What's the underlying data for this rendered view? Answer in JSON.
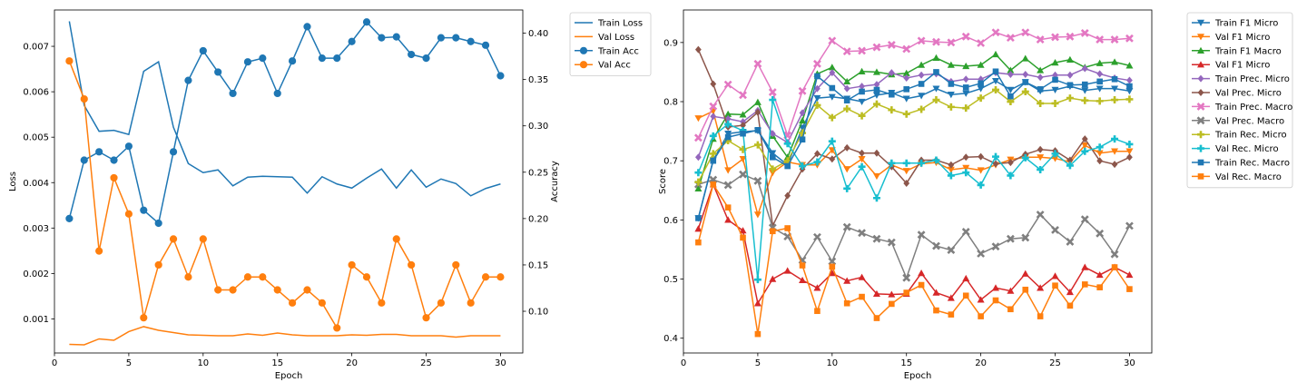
{
  "chart_data": [
    {
      "type": "line",
      "title": "",
      "xlabel": "Epoch",
      "ylabel": "Loss",
      "y2label": "Accuracy",
      "xlim": [
        0,
        31.5
      ],
      "ylim": [
        0.00025,
        0.0078
      ],
      "y2lim": [
        0.055,
        0.425
      ],
      "xticks": [
        0,
        5,
        10,
        15,
        20,
        25,
        30
      ],
      "yticks": [
        0.001,
        0.002,
        0.003,
        0.004,
        0.005,
        0.006,
        0.007
      ],
      "y2ticks": [
        0.1,
        0.15,
        0.2,
        0.25,
        0.3,
        0.35,
        0.4
      ],
      "grid": false,
      "legend_position": "outside top-right",
      "x": [
        1,
        2,
        3,
        4,
        5,
        6,
        7,
        8,
        9,
        10,
        11,
        12,
        13,
        14,
        15,
        16,
        17,
        18,
        19,
        20,
        21,
        22,
        23,
        24,
        25,
        26,
        27,
        28,
        29,
        30
      ],
      "series": [
        {
          "name": "Train Loss",
          "axis": "left",
          "color": "#1f77b4",
          "marker": "none",
          "values": [
            0.00755,
            0.0057,
            0.00513,
            0.00515,
            0.00506,
            0.00645,
            0.00666,
            0.00522,
            0.00442,
            0.00422,
            0.00428,
            0.00393,
            0.00412,
            0.00414,
            0.00413,
            0.00412,
            0.00377,
            0.00413,
            0.00397,
            0.00388,
            0.0041,
            0.0043,
            0.00388,
            0.00428,
            0.0039,
            0.00408,
            0.00398,
            0.00371,
            0.00387,
            0.00397
          ]
        },
        {
          "name": "Val Loss",
          "axis": "left",
          "color": "#ff7f0e",
          "marker": "none",
          "values": [
            0.00044,
            0.00043,
            0.00056,
            0.00053,
            0.00072,
            0.00083,
            0.00075,
            0.0007,
            0.00065,
            0.00064,
            0.00063,
            0.00063,
            0.00067,
            0.00064,
            0.00069,
            0.00065,
            0.00063,
            0.00063,
            0.00063,
            0.00065,
            0.00064,
            0.00066,
            0.00066,
            0.00063,
            0.00063,
            0.00063,
            0.0006,
            0.00063,
            0.00063,
            0.00063
          ]
        },
        {
          "name": "Train Acc",
          "axis": "right",
          "color": "#1f77b4",
          "marker": "circle",
          "values": [
            0.2,
            0.263,
            0.272,
            0.263,
            0.278,
            0.209,
            0.195,
            0.272,
            0.349,
            0.381,
            0.358,
            0.335,
            0.369,
            0.373,
            0.335,
            0.37,
            0.407,
            0.373,
            0.373,
            0.391,
            0.412,
            0.395,
            0.396,
            0.377,
            0.373,
            0.395,
            0.395,
            0.391,
            0.387,
            0.354
          ]
        },
        {
          "name": "Val Acc",
          "axis": "right",
          "color": "#ff7f0e",
          "marker": "circle",
          "values": [
            0.37,
            0.329,
            0.165,
            0.244,
            0.205,
            0.093,
            0.15,
            0.178,
            0.137,
            0.178,
            0.123,
            0.123,
            0.137,
            0.137,
            0.123,
            0.109,
            0.123,
            0.109,
            0.082,
            0.15,
            0.137,
            0.109,
            0.178,
            0.15,
            0.093,
            0.109,
            0.15,
            0.109,
            0.137,
            0.137
          ]
        }
      ]
    },
    {
      "type": "line",
      "title": "",
      "xlabel": "Epoch",
      "ylabel": "Score",
      "xlim": [
        0,
        31.5
      ],
      "ylim": [
        0.375,
        0.955
      ],
      "xticks": [
        0,
        5,
        10,
        15,
        20,
        25,
        30
      ],
      "yticks": [
        0.4,
        0.5,
        0.6,
        0.7,
        0.8,
        0.9
      ],
      "grid": false,
      "legend_position": "outside top-right",
      "x": [
        1,
        2,
        3,
        4,
        5,
        6,
        7,
        8,
        9,
        10,
        11,
        12,
        13,
        14,
        15,
        16,
        17,
        18,
        19,
        20,
        21,
        22,
        23,
        24,
        25,
        26,
        27,
        28,
        29,
        30
      ],
      "series": [
        {
          "name": "Train F1 Micro",
          "color": "#1f77b4",
          "marker": "triangle-down",
          "values": [
            0.603,
            0.701,
            0.746,
            0.749,
            0.751,
            0.713,
            0.693,
            0.756,
            0.806,
            0.808,
            0.805,
            0.8,
            0.811,
            0.815,
            0.805,
            0.81,
            0.822,
            0.812,
            0.814,
            0.822,
            0.835,
            0.82,
            0.833,
            0.818,
            0.82,
            0.826,
            0.819,
            0.822,
            0.822,
            0.818
          ]
        },
        {
          "name": "Val F1 Micro",
          "color": "#ff7f0e",
          "marker": "triangle-down",
          "values": [
            0.772,
            0.784,
            0.684,
            0.703,
            0.609,
            0.68,
            0.698,
            0.693,
            0.693,
            0.718,
            0.686,
            0.703,
            0.674,
            0.693,
            0.683,
            0.695,
            0.697,
            0.685,
            0.688,
            0.684,
            0.693,
            0.702,
            0.706,
            0.706,
            0.704,
            0.698,
            0.726,
            0.713,
            0.716,
            0.716
          ]
        },
        {
          "name": "Train F1 Macro",
          "color": "#2ca02c",
          "marker": "triangle-up",
          "values": [
            0.653,
            0.737,
            0.779,
            0.778,
            0.799,
            0.742,
            0.706,
            0.768,
            0.847,
            0.858,
            0.834,
            0.851,
            0.85,
            0.846,
            0.848,
            0.862,
            0.874,
            0.862,
            0.86,
            0.862,
            0.88,
            0.853,
            0.873,
            0.853,
            0.866,
            0.871,
            0.858,
            0.865,
            0.867,
            0.861
          ]
        },
        {
          "name": "Val F1 Micro",
          "color": "#d62728",
          "marker": "triangle-up",
          "values": [
            0.585,
            0.66,
            0.6,
            0.582,
            0.459,
            0.5,
            0.514,
            0.498,
            0.485,
            0.51,
            0.497,
            0.503,
            0.475,
            0.474,
            0.475,
            0.51,
            0.477,
            0.468,
            0.501,
            0.465,
            0.485,
            0.48,
            0.509,
            0.485,
            0.505,
            0.478,
            0.52,
            0.507,
            0.52,
            0.507
          ]
        },
        {
          "name": "Train Prec. Micro",
          "color": "#9467bd",
          "marker": "diamond",
          "values": [
            0.706,
            0.775,
            0.771,
            0.766,
            0.785,
            0.746,
            0.731,
            0.781,
            0.822,
            0.849,
            0.822,
            0.826,
            0.829,
            0.849,
            0.84,
            0.845,
            0.847,
            0.834,
            0.838,
            0.838,
            0.849,
            0.846,
            0.846,
            0.841,
            0.845,
            0.845,
            0.856,
            0.847,
            0.84,
            0.836
          ]
        },
        {
          "name": "Val Prec. Micro",
          "color": "#8c564b",
          "marker": "diamond",
          "values": [
            0.888,
            0.83,
            0.757,
            0.76,
            0.782,
            0.59,
            0.641,
            0.686,
            0.712,
            0.703,
            0.722,
            0.713,
            0.713,
            0.69,
            0.662,
            0.701,
            0.701,
            0.693,
            0.706,
            0.707,
            0.695,
            0.697,
            0.711,
            0.719,
            0.717,
            0.701,
            0.737,
            0.7,
            0.694,
            0.706
          ]
        },
        {
          "name": "Train Prec. Macro",
          "color": "#e377c2",
          "marker": "x",
          "values": [
            0.739,
            0.792,
            0.829,
            0.811,
            0.864,
            0.816,
            0.743,
            0.818,
            0.864,
            0.903,
            0.885,
            0.886,
            0.892,
            0.896,
            0.889,
            0.903,
            0.901,
            0.9,
            0.91,
            0.899,
            0.917,
            0.908,
            0.917,
            0.905,
            0.909,
            0.91,
            0.916,
            0.905,
            0.905,
            0.907
          ]
        },
        {
          "name": "Val Prec. Macro",
          "color": "#7f7f7f",
          "marker": "x",
          "values": [
            0.66,
            0.668,
            0.659,
            0.677,
            0.666,
            0.587,
            0.572,
            0.532,
            0.571,
            0.53,
            0.588,
            0.578,
            0.568,
            0.562,
            0.502,
            0.575,
            0.556,
            0.549,
            0.58,
            0.543,
            0.555,
            0.568,
            0.57,
            0.609,
            0.583,
            0.563,
            0.601,
            0.577,
            0.542,
            0.59
          ]
        },
        {
          "name": "Train Rec. Micro",
          "color": "#bcbd22",
          "marker": "plus",
          "values": [
            0.664,
            0.712,
            0.734,
            0.719,
            0.727,
            0.686,
            0.7,
            0.747,
            0.794,
            0.773,
            0.788,
            0.776,
            0.796,
            0.786,
            0.779,
            0.787,
            0.803,
            0.791,
            0.789,
            0.806,
            0.82,
            0.8,
            0.817,
            0.797,
            0.797,
            0.806,
            0.802,
            0.801,
            0.803,
            0.804
          ]
        },
        {
          "name": "Val Rec. Micro",
          "color": "#17becf",
          "marker": "plus",
          "values": [
            0.68,
            0.742,
            0.762,
            0.751,
            0.499,
            0.803,
            0.729,
            0.691,
            0.698,
            0.733,
            0.653,
            0.69,
            0.637,
            0.696,
            0.696,
            0.696,
            0.701,
            0.675,
            0.68,
            0.659,
            0.707,
            0.675,
            0.705,
            0.685,
            0.712,
            0.692,
            0.716,
            0.723,
            0.737,
            0.728
          ]
        },
        {
          "name": "Train Rec. Macro",
          "color": "#1f77b4",
          "marker": "square",
          "values": [
            0.603,
            0.7,
            0.74,
            0.746,
            0.752,
            0.706,
            0.691,
            0.736,
            0.843,
            0.823,
            0.802,
            0.817,
            0.82,
            0.812,
            0.821,
            0.83,
            0.85,
            0.83,
            0.824,
            0.831,
            0.851,
            0.809,
            0.833,
            0.821,
            0.837,
            0.828,
            0.829,
            0.834,
            0.838,
            0.826
          ]
        },
        {
          "name": "Val Rec. Macro",
          "color": "#ff7f0e",
          "marker": "square",
          "values": [
            0.562,
            0.66,
            0.621,
            0.57,
            0.407,
            0.581,
            0.586,
            0.523,
            0.446,
            0.521,
            0.459,
            0.47,
            0.434,
            0.458,
            0.477,
            0.49,
            0.447,
            0.44,
            0.472,
            0.437,
            0.464,
            0.449,
            0.482,
            0.437,
            0.489,
            0.455,
            0.491,
            0.486,
            0.52,
            0.483
          ]
        }
      ]
    }
  ]
}
